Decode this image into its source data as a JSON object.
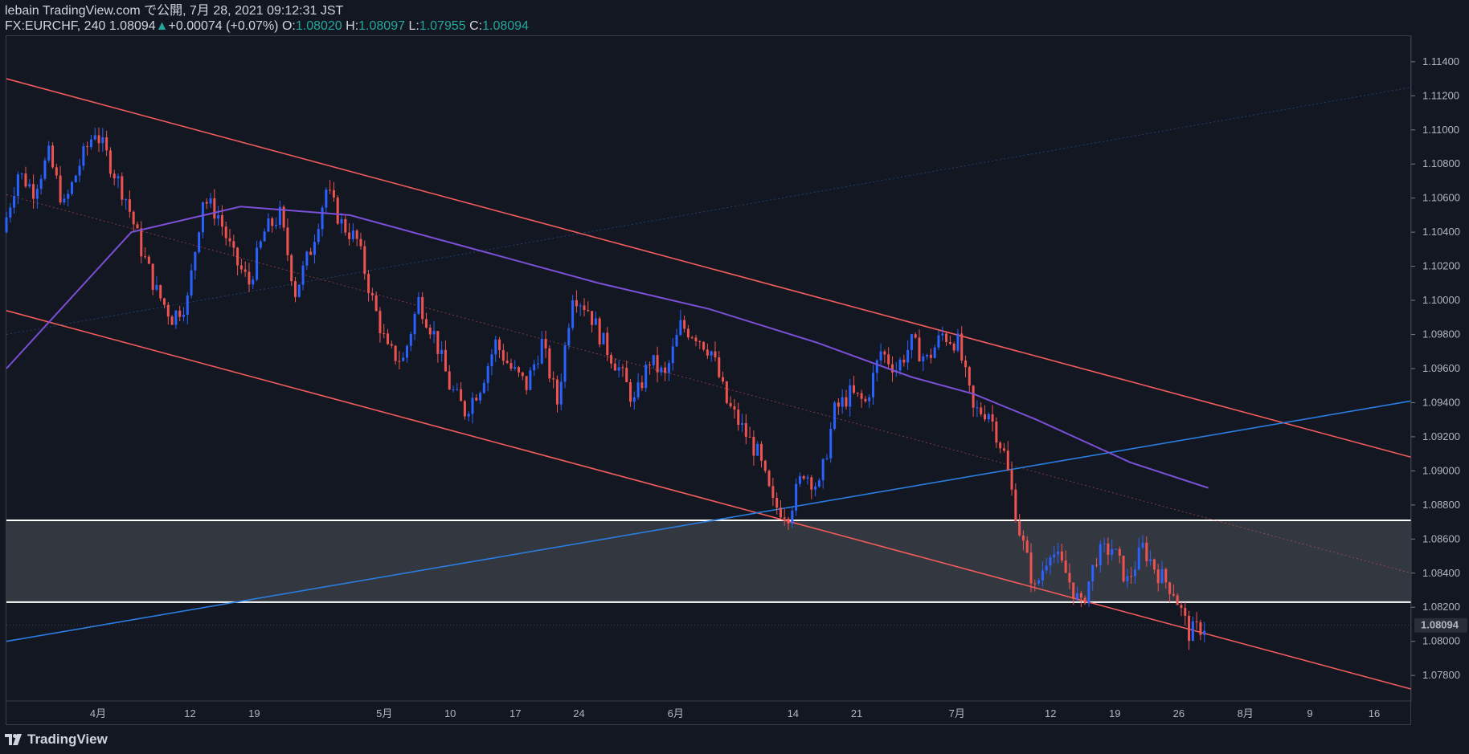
{
  "header": {
    "line1": "lebain TradingView.com で公開, 7月 28, 2021 09:12:31 JST",
    "symbol": "FX:EURCHF, 240",
    "last": "1.08094",
    "change": "+0.00074 (+0.07%)",
    "o_label": "O:",
    "o": "1.08020",
    "h_label": "H:",
    "h": "1.08097",
    "l_label": "L:",
    "l": "1.07955",
    "c_label": "C:",
    "c": "1.08094"
  },
  "footer": {
    "brand": "TradingView"
  },
  "colors": {
    "background": "#131722",
    "up_candle": "#2962ff",
    "down_candle": "#ef5350",
    "channel": "#f05b5b",
    "trendline": "#2a7de1",
    "ma": "#7b4fd6",
    "zone": "#3a3d45",
    "price_badge": "#2a2e39"
  },
  "chart_data": {
    "type": "candlestick",
    "symbol": "FX:EURCHF",
    "interval": "240",
    "ylim": [
      1.0765,
      1.1155
    ],
    "y_ticks": [
      "1.11400",
      "1.11200",
      "1.11000",
      "1.10800",
      "1.10600",
      "1.10400",
      "1.10200",
      "1.10000",
      "1.09800",
      "1.09600",
      "1.09400",
      "1.09200",
      "1.09000",
      "1.08800",
      "1.08600",
      "1.08400",
      "1.08200",
      "1.08000",
      "1.07800"
    ],
    "last_price": "1.08094",
    "x_ticks": [
      "4月",
      "12",
      "19",
      "5月",
      "10",
      "17",
      "24",
      "6月",
      "14",
      "21",
      "7月",
      "12",
      "19",
      "26",
      "8月",
      "9",
      "16"
    ],
    "close_path": [
      1.104,
      1.1075,
      1.1065,
      1.1085,
      1.1055,
      1.108,
      1.11,
      1.108,
      1.106,
      1.103,
      1.1005,
      1.099,
      1.1,
      1.106,
      1.105,
      1.1025,
      1.101,
      1.104,
      1.105,
      1.1005,
      1.103,
      1.1065,
      1.1045,
      1.1035,
      1.1,
      1.097,
      1.0965,
      1.1,
      1.098,
      1.095,
      1.0935,
      1.095,
      1.0975,
      1.096,
      1.095,
      1.0975,
      1.094,
      1.1005,
      1.0995,
      1.0975,
      1.096,
      1.094,
      1.0965,
      1.0955,
      1.0985,
      1.098,
      1.097,
      1.094,
      1.0925,
      1.091,
      1.088,
      1.0875,
      1.09,
      1.089,
      1.0935,
      1.0945,
      1.094,
      1.097,
      1.096,
      1.0975,
      1.0965,
      1.098,
      1.0975,
      1.0935,
      1.0935,
      1.091,
      1.0865,
      1.083,
      1.0855,
      1.084,
      1.082,
      1.085,
      1.0855,
      1.0835,
      1.0855,
      1.084,
      1.083,
      1.0805,
      1.0809
    ],
    "moving_average": [
      [
        0,
        1.096
      ],
      [
        8,
        1.104
      ],
      [
        15,
        1.1055
      ],
      [
        22,
        1.105
      ],
      [
        30,
        1.103
      ],
      [
        38,
        1.101
      ],
      [
        45,
        1.0995
      ],
      [
        52,
        1.0975
      ],
      [
        58,
        1.0955
      ],
      [
        62,
        1.0945
      ],
      [
        66,
        1.093
      ],
      [
        72,
        1.0905
      ],
      [
        77,
        1.089
      ]
    ],
    "lines": [
      {
        "name": "channel-upper",
        "from": [
          0,
          1.113
        ],
        "to": [
          90,
          1.0908
        ]
      },
      {
        "name": "channel-lower",
        "from": [
          0,
          1.0994
        ],
        "to": [
          90,
          1.0772
        ]
      },
      {
        "name": "channel-mid",
        "from": [
          0,
          1.1062
        ],
        "to": [
          90,
          1.084
        ]
      },
      {
        "name": "trendline-main",
        "from": [
          0,
          1.08
        ],
        "to": [
          90,
          1.0941
        ]
      },
      {
        "name": "trendline-upper",
        "from": [
          0,
          1.098
        ],
        "to": [
          90,
          1.1125
        ]
      }
    ],
    "zone": {
      "top": 1.0871,
      "bottom": 1.0823
    },
    "x_range": [
      0,
      90
    ]
  }
}
